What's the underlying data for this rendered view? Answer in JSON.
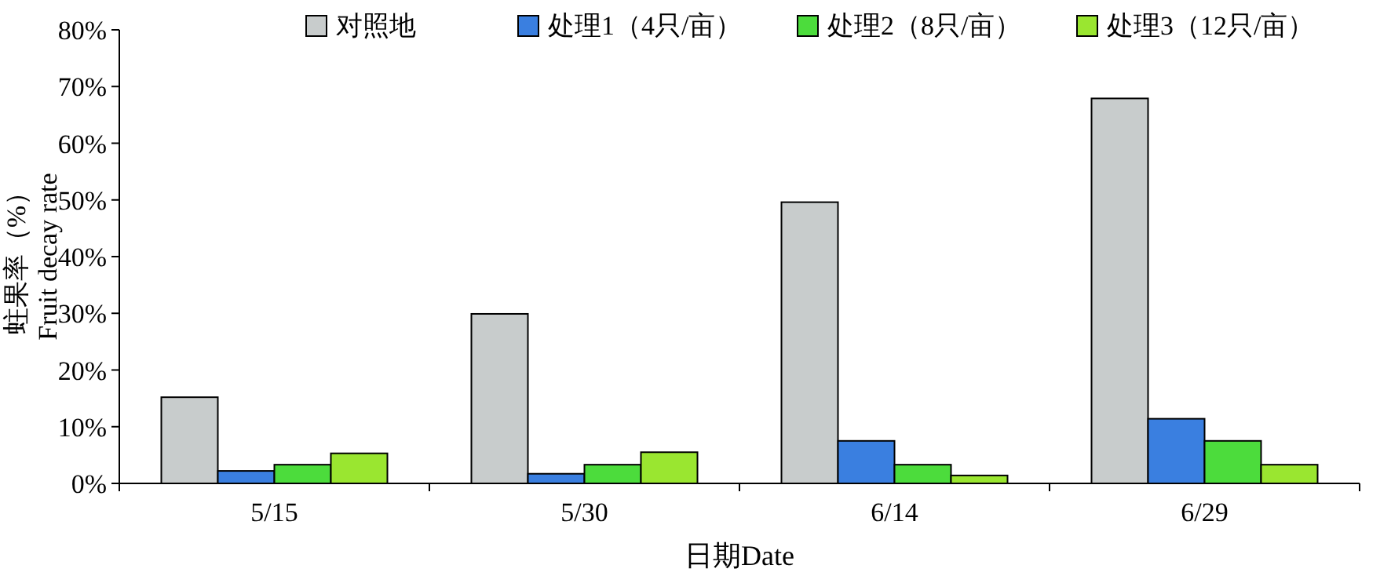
{
  "chart_data": {
    "type": "bar",
    "xlabel": "日期Date",
    "ylabel": "蛀果率（%）\nFruit decay rate",
    "categories": [
      "5/15",
      "5/30",
      "6/14",
      "6/29"
    ],
    "series": [
      {
        "name": "对照地",
        "color": "#c8cccc",
        "values": [
          15.2,
          29.9,
          49.6,
          67.9
        ]
      },
      {
        "name": "处理1（4只/亩）",
        "color": "#3a7fe0",
        "values": [
          2.2,
          1.7,
          7.5,
          11.4
        ]
      },
      {
        "name": "处理2（8只/亩）",
        "color": "#4cdc3c",
        "values": [
          3.3,
          3.3,
          3.3,
          7.5
        ]
      },
      {
        "name": "处理3（12只/亩）",
        "color": "#9ae630",
        "values": [
          5.3,
          5.5,
          1.4,
          3.3
        ]
      }
    ],
    "ylim": [
      0,
      80
    ],
    "yticks": [
      {
        "value": 0,
        "label": "0%"
      },
      {
        "value": 10,
        "label": "10%"
      },
      {
        "value": 20,
        "label": "20%"
      },
      {
        "value": 30,
        "label": "30%"
      },
      {
        "value": 40,
        "label": "40%"
      },
      {
        "value": 50,
        "label": "50%"
      },
      {
        "value": 60,
        "label": "60%"
      },
      {
        "value": 70,
        "label": "70%"
      },
      {
        "value": 80,
        "label": "80%"
      }
    ],
    "legend": "top",
    "grid": false
  }
}
